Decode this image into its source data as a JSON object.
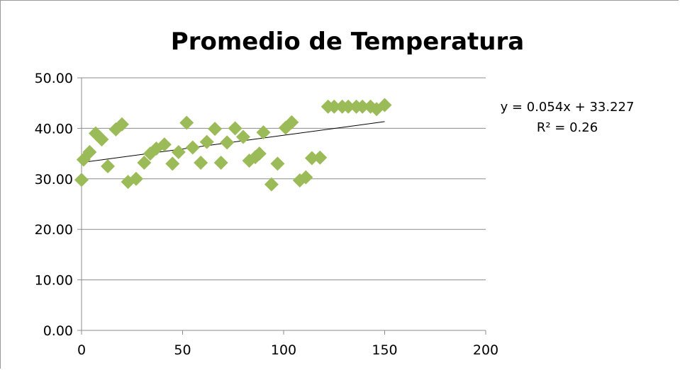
{
  "chart_data": {
    "type": "scatter",
    "title": "Promedio de Temperatura",
    "xlim": [
      0,
      200
    ],
    "ylim": [
      0,
      50
    ],
    "xticks": [
      "0",
      "50",
      "100",
      "150",
      "200"
    ],
    "yticks": [
      "0.00",
      "10.00",
      "20.00",
      "30.00",
      "40.00",
      "50.00"
    ],
    "grid": "horizontal",
    "marker_color": "#9bbb59",
    "points": [
      [
        0,
        29.8
      ],
      [
        1,
        33.8
      ],
      [
        4,
        35.3
      ],
      [
        7,
        39.0
      ],
      [
        10,
        37.8
      ],
      [
        13,
        32.5
      ],
      [
        17,
        39.8
      ],
      [
        20,
        40.8
      ],
      [
        23,
        29.4
      ],
      [
        27,
        30.0
      ],
      [
        31,
        33.2
      ],
      [
        34,
        35.0
      ],
      [
        37,
        36.0
      ],
      [
        41,
        36.8
      ],
      [
        45,
        33.0
      ],
      [
        48,
        35.3
      ],
      [
        52,
        41.1
      ],
      [
        55,
        36.2
      ],
      [
        59,
        33.2
      ],
      [
        62,
        37.3
      ],
      [
        66,
        39.9
      ],
      [
        69,
        33.2
      ],
      [
        72,
        37.2
      ],
      [
        76,
        40.0
      ],
      [
        80,
        38.3
      ],
      [
        83,
        33.6
      ],
      [
        86,
        34.3
      ],
      [
        88,
        35.0
      ],
      [
        90,
        39.2
      ],
      [
        94,
        28.9
      ],
      [
        97,
        33.0
      ],
      [
        101,
        40.1
      ],
      [
        104,
        41.2
      ],
      [
        108,
        29.7
      ],
      [
        111,
        30.3
      ],
      [
        114,
        34.1
      ],
      [
        118,
        34.2
      ],
      [
        122,
        44.3
      ],
      [
        125,
        44.3
      ],
      [
        129,
        44.3
      ],
      [
        132,
        44.3
      ],
      [
        136,
        44.3
      ],
      [
        139,
        44.3
      ],
      [
        143,
        44.3
      ],
      [
        146,
        43.8
      ],
      [
        150,
        44.6
      ]
    ],
    "trendline": {
      "slope": 0.054,
      "intercept": 33.227,
      "x_range": [
        0,
        150
      ]
    },
    "equation_label": "y = 0.054x + 33.227",
    "r2_label": "R² = 0.26"
  }
}
